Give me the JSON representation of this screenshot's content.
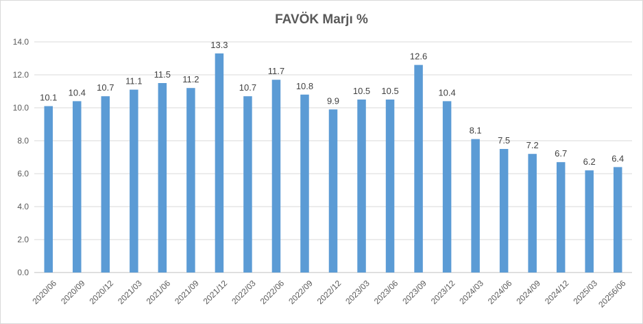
{
  "chart_data": {
    "type": "bar",
    "title": "FAVÖK Marjı %",
    "xlabel": "",
    "ylabel": "",
    "ylim": [
      0,
      14
    ],
    "ytick_step": 2,
    "ytick_labels": [
      "0.0",
      "2.0",
      "4.0",
      "6.0",
      "8.0",
      "10.0",
      "12.0",
      "14.0"
    ],
    "grid": true,
    "legend": "none",
    "bar_color": "#5b9bd5",
    "categories": [
      "2020/06",
      "2020/09",
      "2020/12",
      "2021/03",
      "2021/06",
      "2021/09",
      "2021/12",
      "2022/03",
      "2022/06",
      "2022/09",
      "2022/12",
      "2023/03",
      "2023/06",
      "2023/09",
      "2023/12",
      "2024/03",
      "2024/06",
      "2024/09",
      "2024/12",
      "2025/03",
      "20256/06"
    ],
    "values": [
      10.1,
      10.4,
      10.7,
      11.1,
      11.5,
      11.2,
      13.3,
      10.7,
      11.7,
      10.8,
      9.9,
      10.5,
      10.5,
      12.6,
      10.4,
      8.1,
      7.5,
      7.2,
      6.7,
      6.2,
      6.4
    ],
    "data_labels": [
      "10.1",
      "10.4",
      "10.7",
      "11.1",
      "11.5",
      "11.2",
      "13.3",
      "10.7",
      "11.7",
      "10.8",
      "9.9",
      "10.5",
      "10.5",
      "12.6",
      "10.4",
      "8.1",
      "7.5",
      "7.2",
      "6.7",
      "6.2",
      "6.4"
    ]
  }
}
